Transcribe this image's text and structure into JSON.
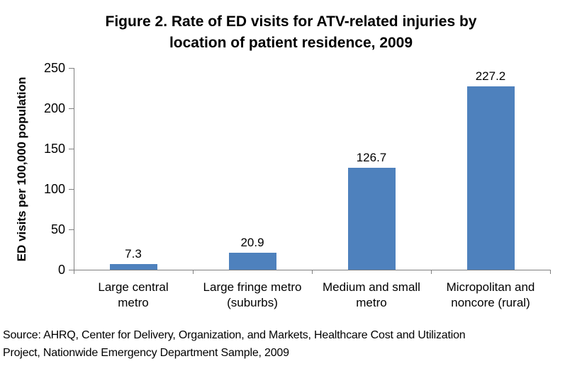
{
  "chart_data": {
    "type": "bar",
    "title": "Figure 2.  Rate of ED visits for ATV-related injuries by\nlocation of patient residence, 2009",
    "xlabel": "",
    "ylabel": "ED visits per 100,000 population",
    "categories": [
      "Large central\nmetro",
      "Large fringe metro\n(suburbs)",
      "Medium and small\nmetro",
      "Micropolitan and\nnoncore (rural)"
    ],
    "values": [
      7.3,
      20.9,
      126.7,
      227.2
    ],
    "value_labels": [
      "7.3",
      "20.9",
      "126.7",
      "227.2"
    ],
    "ylim": [
      0,
      250
    ],
    "yticks": [
      0,
      50,
      100,
      150,
      200,
      250
    ],
    "grid": false,
    "legend": "none",
    "bar_color": "#4E81BD",
    "axis_color": "#808080",
    "source": "Source: AHRQ, Center for Delivery, Organization, and Markets, Healthcare Cost and Utilization\nProject, Nationwide Emergency Department Sample, 2009"
  }
}
